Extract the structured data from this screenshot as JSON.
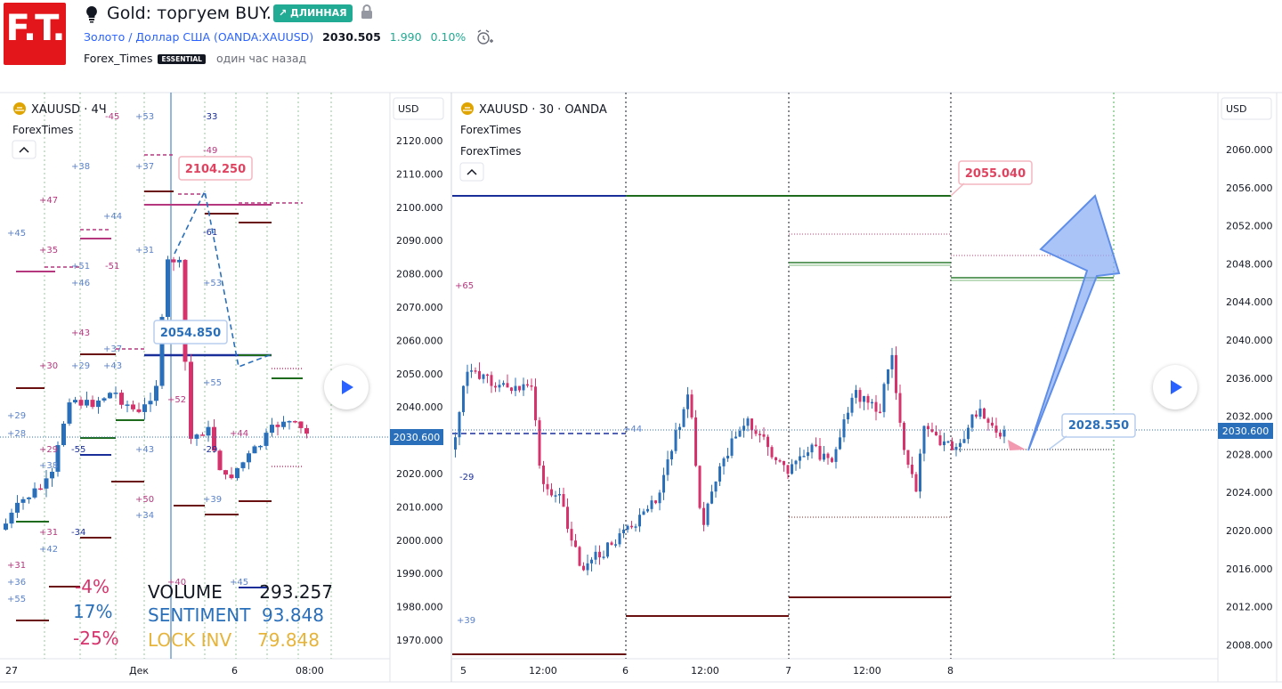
{
  "header": {
    "logo_text": "F.T.",
    "idea_title": "Gold: торгуем BUY.",
    "direction_badge": "↗ ДЛИННАЯ",
    "symbol_link": "Золото / Доллар США",
    "symbol_code": "(OANDA:XAUUSD)",
    "last_price": "2030.505",
    "change": "1.990",
    "change_pct": "0.10%",
    "author": "Forex_Times",
    "author_badge": "ESSENTIAL",
    "published": "один час назад",
    "icons": [
      "lightbulb-icon",
      "lock-icon",
      "alarm-icon"
    ]
  },
  "left_chart": {
    "symbol": "XAUUSD · 4Ч",
    "indicator": "ForexTimes",
    "currency": "USD",
    "price_labels": [
      "2120.000",
      "2110.000",
      "2100.000",
      "2090.000",
      "2080.000",
      "2070.000",
      "2060.000",
      "2050.000",
      "2040.000",
      "2030.000",
      "2020.000",
      "2010.000",
      "2000.000",
      "1990.000",
      "1980.000",
      "1970.000"
    ],
    "current_price": "2030.600",
    "time_labels": [
      "27",
      "Дек",
      "6",
      "08:00"
    ],
    "callout_high": "2104.250",
    "callout_low": "2054.850",
    "level_labels": [
      "-45",
      "+53",
      "-33",
      "-49",
      "+38",
      "+37",
      "+47",
      "+44",
      "+45",
      "+35",
      "+31",
      "+51",
      "-51",
      "+46",
      "+53",
      "+43",
      "+37",
      "+43",
      "+30",
      "+29",
      "+55",
      "+52",
      "+29",
      "+28",
      "+29",
      "-55",
      "-29",
      "+44",
      "+38",
      "+43",
      "+50",
      "+34",
      "+39",
      "+31",
      "-34",
      "+42",
      "+31",
      "+36",
      "+55",
      "+40",
      "+45",
      "-61"
    ],
    "stats": {
      "pct_a": "-4%",
      "pct_b": "17%",
      "pct_c": "-25%",
      "volume_label": "VOLUME",
      "volume_value": "293.257",
      "sentiment_label": "SENTIMENT",
      "sentiment_value": "93.848",
      "lock_label": "LOCK INV",
      "lock_value": "79.848"
    },
    "colors": {
      "up": "#2a6fba",
      "down": "#d6336c",
      "accent": "#2962ff"
    }
  },
  "right_chart": {
    "symbol": "XAUUSD · 30 · OANDA",
    "indicator_1": "ForexTimes",
    "indicator_2": "ForexTimes",
    "currency": "USD",
    "price_labels": [
      "2060.000",
      "2056.000",
      "2052.000",
      "2048.000",
      "2044.000",
      "2040.000",
      "2036.000",
      "2032.000",
      "2028.000",
      "2024.000",
      "2020.000",
      "2016.000",
      "2012.000",
      "2008.000"
    ],
    "current_price": "2030.600",
    "time_labels": [
      "5",
      "12:00",
      "6",
      "12:00",
      "7",
      "12:00",
      "8"
    ],
    "callout_target": "2055.040",
    "callout_entry": "2028.550",
    "level_labels": [
      "+65",
      "+44",
      "-29",
      "+39"
    ]
  }
}
